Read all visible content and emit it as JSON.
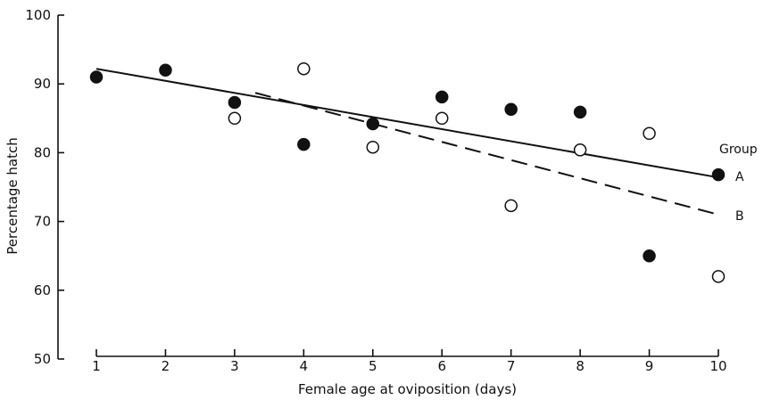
{
  "chart_data": {
    "type": "scatter",
    "title": "",
    "xlabel": "Female age at oviposition (days)",
    "ylabel": "Percentage hatch",
    "xlim": [
      1,
      10
    ],
    "ylim": [
      50,
      100
    ],
    "x_ticks": [
      1,
      2,
      3,
      4,
      5,
      6,
      7,
      8,
      9,
      10
    ],
    "y_ticks": [
      50,
      60,
      70,
      80,
      90,
      100
    ],
    "legend_title": "Group",
    "series": [
      {
        "name": "A",
        "marker": "filled-circle",
        "color": "#000000",
        "points": [
          [
            1,
            91
          ],
          [
            2,
            92
          ],
          [
            3,
            87.3
          ],
          [
            4,
            81.2
          ],
          [
            5,
            84.2
          ],
          [
            6,
            88.1
          ],
          [
            7,
            86.3
          ],
          [
            8,
            85.9
          ],
          [
            9,
            65
          ],
          [
            10,
            76.8
          ]
        ],
        "fit": {
          "style": "solid",
          "from": [
            1,
            92.2
          ],
          "to": [
            10,
            76.4
          ]
        }
      },
      {
        "name": "B",
        "marker": "open-circle",
        "color": "#000000",
        "points": [
          [
            3,
            85
          ],
          [
            4,
            92.2
          ],
          [
            5,
            80.8
          ],
          [
            6,
            85
          ],
          [
            7,
            72.3
          ],
          [
            8,
            80.4
          ],
          [
            9,
            82.8
          ],
          [
            10,
            62
          ]
        ],
        "fit": {
          "style": "dashed",
          "from": [
            3.3,
            88.7
          ],
          "to": [
            10,
            71
          ]
        }
      }
    ]
  }
}
